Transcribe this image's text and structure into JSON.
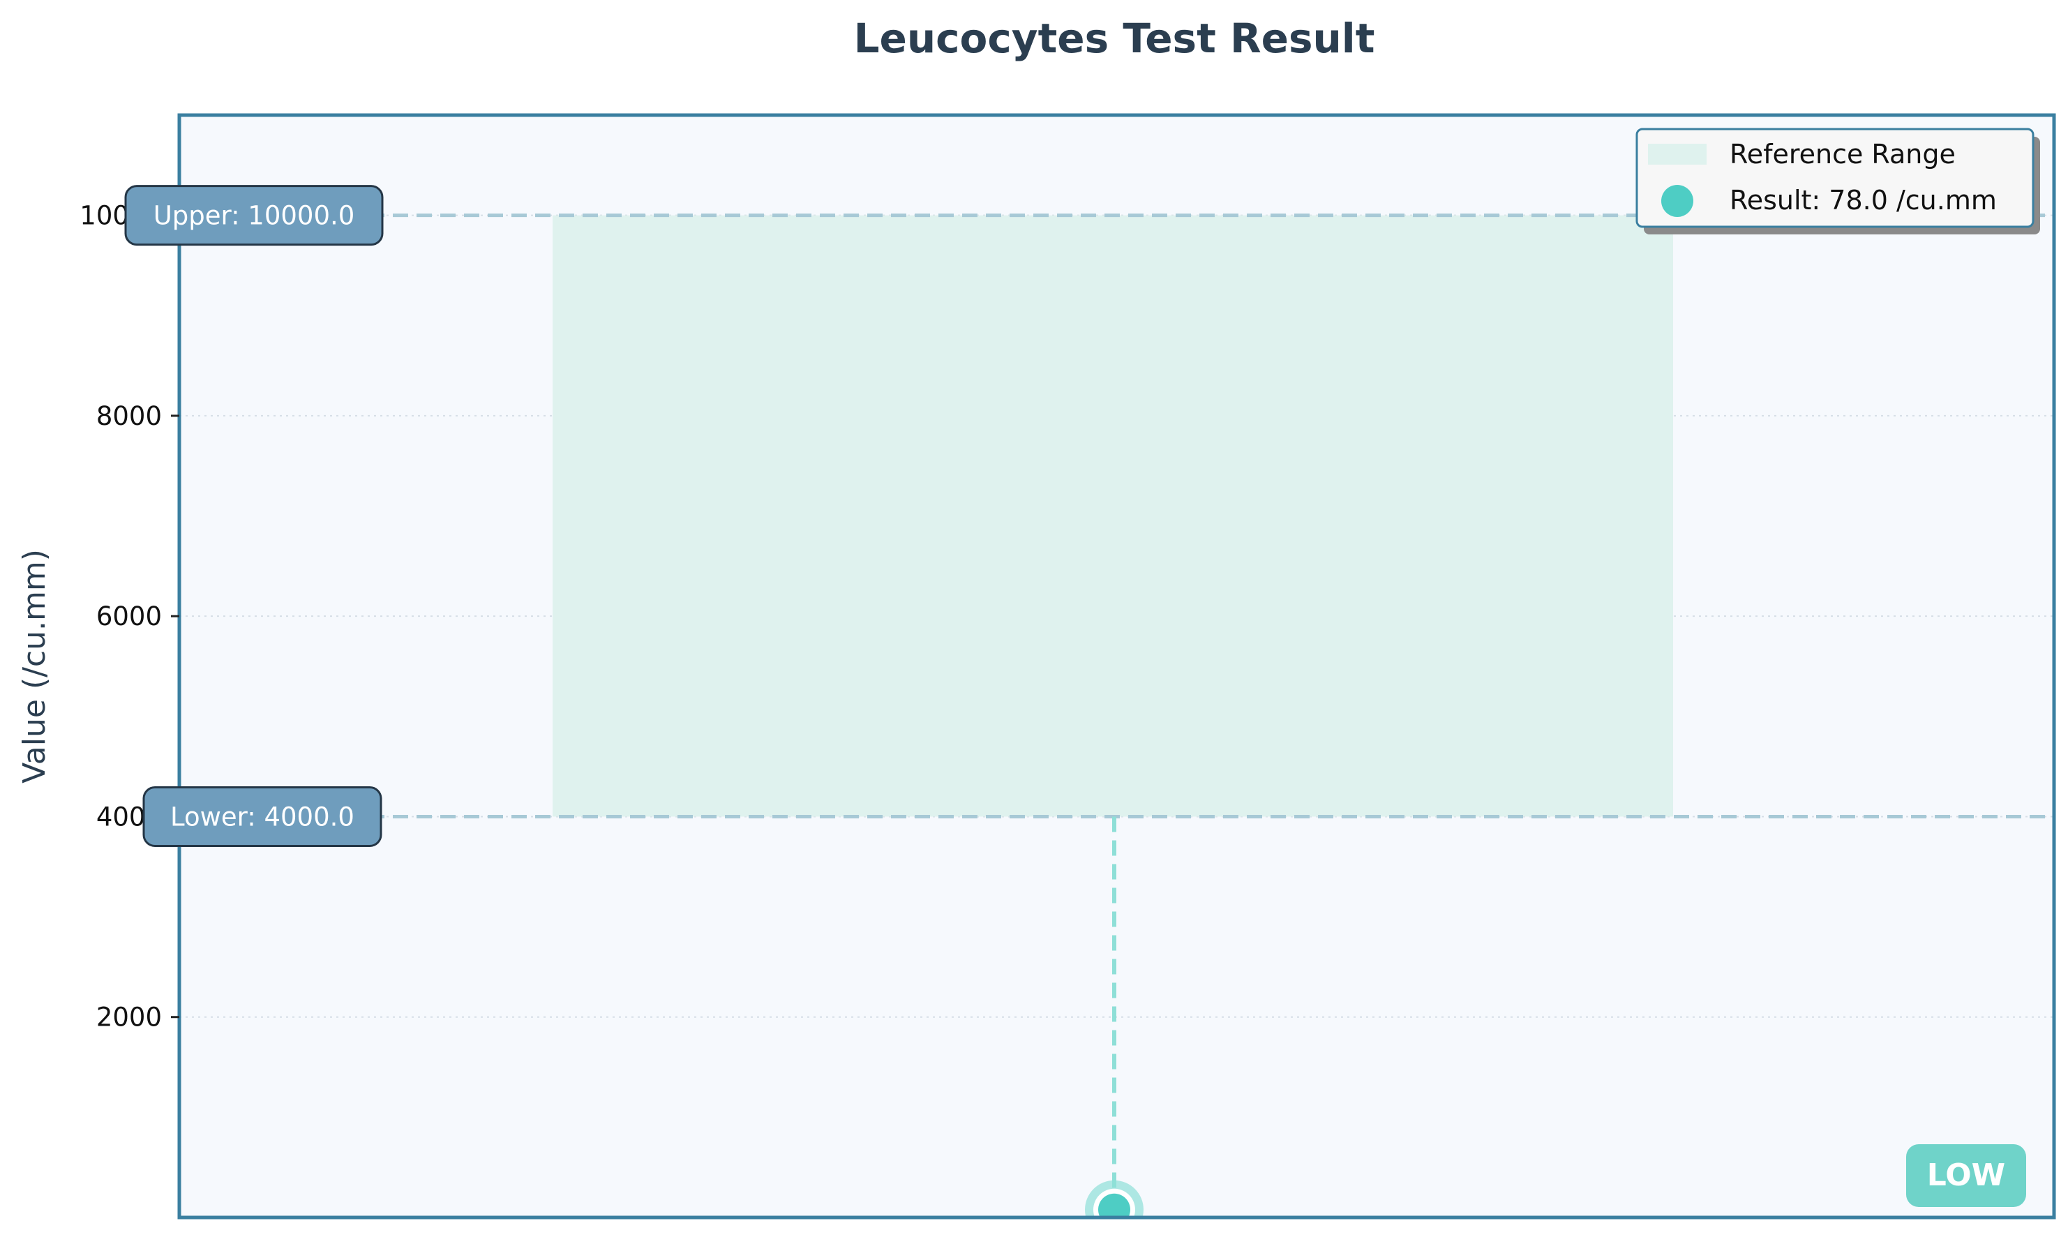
{
  "chart_data": {
    "type": "scatter",
    "title": "Leucocytes Test Result",
    "xlabel": "",
    "ylabel": "Value (/cu.mm)",
    "ylim": [
      0,
      11000
    ],
    "yticks": [
      2000,
      4000,
      6000,
      8000,
      10000
    ],
    "grid": "y",
    "reference_range": {
      "lower": 4000.0,
      "upper": 10000.0,
      "label": "Reference Range"
    },
    "series": [
      {
        "name": "Result: 78.0 /cu.mm",
        "x": [
          0
        ],
        "y": [
          78.0
        ]
      }
    ],
    "annotations": {
      "upper": "Upper: 10000.0",
      "lower": "Lower: 4000.0"
    },
    "status": "LOW",
    "legend_position": "top-right",
    "colors": {
      "reference_fill": "#dff2ee",
      "point": "#4ecdc4",
      "threshold_line": "#a7c9d6",
      "annotation_box": "#6f9dbd",
      "plot_background": "#f6f9fd",
      "frame": "#3a7fa0",
      "status_badge": "#6fd3c9"
    }
  }
}
